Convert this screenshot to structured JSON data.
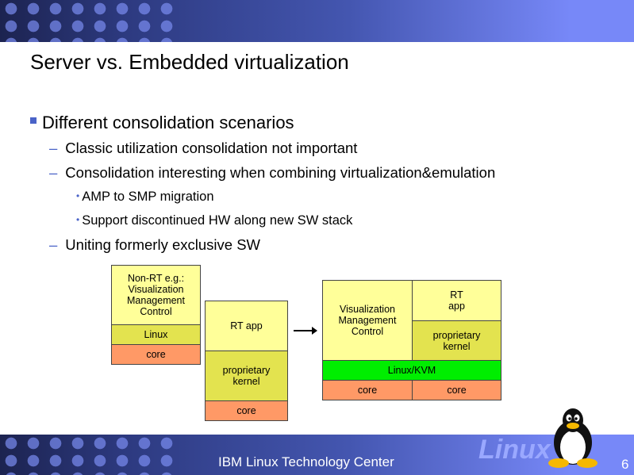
{
  "title": "Server vs. Embedded virtualization",
  "bullets": {
    "l1": "Different consolidation scenarios",
    "a": "Classic utilization consolidation not important",
    "b": "Consolidation interesting when combining virtualization&emulation",
    "b1": "AMP to SMP migration",
    "b2": "Support discontinued HW along new SW stack",
    "c": "Uniting formerly exclusive SW"
  },
  "diagram": {
    "left": {
      "app": "Non-RT e.g.: Visualization Management Control",
      "os": "Linux",
      "hw": "core"
    },
    "middle": {
      "app": "RT app",
      "os": "proprietary kernel",
      "hw": "core"
    },
    "right": {
      "app1": "Visualization Management Control",
      "app2": "RT app",
      "os2": "proprietary kernel",
      "hyp": "Linux/KVM",
      "hw1": "core",
      "hw2": "core"
    },
    "colors": {
      "app": "#ffff99",
      "os": "#e3e34f",
      "core": "#ff9966",
      "hypervisor": "#00ee00"
    }
  },
  "footer": {
    "text": "IBM Linux Technology Center",
    "logo": "Linux",
    "page": "6"
  }
}
